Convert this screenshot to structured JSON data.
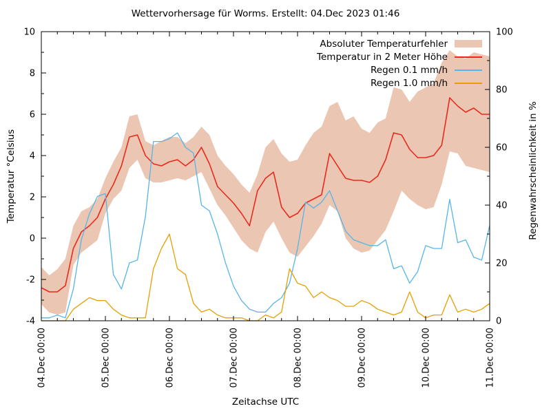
{
  "title": "Wettervorhersage für Worms. Erstellt: 04.Dec 2023 01:46",
  "x_axis": {
    "label": "Zeitachse UTC",
    "tick_labels": [
      "04.Dec 00:00",
      "05.Dec 00:00",
      "06.Dec 00:00",
      "07.Dec 00:00",
      "08.Dec 00:00",
      "09.Dec 00:00",
      "10.Dec 00:00",
      "11.Dec 00:00"
    ]
  },
  "y_left": {
    "label": "Temperatur °Celsius",
    "ticks": [
      10,
      8,
      6,
      4,
      2,
      0,
      -2,
      -4
    ]
  },
  "y_right": {
    "label": "Regenwahrscheinlichkeit in %",
    "ticks": [
      100,
      80,
      60,
      40,
      20,
      0
    ]
  },
  "legend": [
    {
      "label": "Absoluter Temperaturfehler",
      "type": "band",
      "color": "#ebc6b2"
    },
    {
      "label": "Temperatur in 2 Meter Höhe",
      "type": "line",
      "color": "#e8291b"
    },
    {
      "label": "Regen 0.1 mm/h",
      "type": "line",
      "color": "#56b4e9"
    },
    {
      "label": "Regen 1.0 mm/h",
      "type": "line",
      "color": "#e69f00"
    }
  ],
  "chart_data": {
    "type": "line",
    "title": "Wettervorhersage für Worms. Erstellt: 04.Dec 2023 01:46",
    "xlabel": "Zeitachse UTC",
    "ylabel_left": "Temperatur °Celsius",
    "ylabel_right": "Regenwahrscheinlichkeit in %",
    "x_start_hours": 0,
    "x_step_hours": 3,
    "x_end_hours": 168,
    "x_major_tick_hours": 24,
    "x_minor_tick_hours": 6,
    "y_left_range": [
      -4,
      10
    ],
    "y_left_major_step": 2,
    "y_left_minor_step": 1,
    "y_right_range": [
      0,
      100
    ],
    "y_right_major_step": 20,
    "y_right_minor_step": 10,
    "grid": false,
    "legend_position": "top-right-inside",
    "series": [
      {
        "name": "Absoluter Temperaturfehler",
        "type": "band",
        "axis": "left",
        "color": "#ebc6b2",
        "upper": [
          -1.4,
          -1.8,
          -1.5,
          -1.0,
          0.6,
          1.3,
          1.5,
          1.9,
          2.9,
          3.7,
          4.4,
          5.9,
          6.0,
          4.7,
          4.5,
          4.7,
          4.9,
          4.9,
          4.6,
          4.9,
          5.4,
          5.0,
          4.0,
          3.5,
          3.1,
          2.6,
          2.2,
          3.1,
          4.4,
          4.8,
          4.1,
          3.7,
          3.8,
          4.5,
          5.1,
          5.4,
          6.4,
          6.6,
          5.7,
          5.9,
          5.3,
          5.1,
          5.6,
          5.8,
          7.3,
          7.2,
          6.6,
          7.1,
          7.3,
          7.5,
          8.5,
          9.1,
          8.8,
          8.7,
          9.0,
          8.9,
          8.8
        ],
        "lower": [
          -3.2,
          -3.6,
          -3.7,
          -3.6,
          -1.3,
          -0.7,
          -0.4,
          -0.1,
          1.2,
          1.9,
          2.3,
          3.4,
          3.8,
          2.9,
          2.7,
          2.7,
          2.8,
          2.9,
          2.8,
          3.0,
          3.2,
          2.4,
          1.6,
          1.1,
          0.5,
          -0.1,
          -0.5,
          -0.7,
          0.3,
          0.8,
          0.0,
          -0.7,
          -0.9,
          -0.4,
          0.1,
          0.7,
          1.6,
          1.3,
          0.0,
          -0.5,
          -0.7,
          -0.6,
          -0.1,
          0.4,
          1.3,
          2.3,
          1.9,
          1.6,
          1.4,
          1.5,
          2.6,
          4.2,
          4.1,
          3.5,
          3.4,
          3.3,
          3.2
        ]
      },
      {
        "name": "Temperatur in 2 Meter Höhe",
        "type": "line",
        "axis": "left",
        "color": "#e8291b",
        "values": [
          -2.4,
          -2.6,
          -2.6,
          -2.3,
          -0.5,
          0.3,
          0.6,
          1.0,
          1.9,
          2.6,
          3.5,
          4.9,
          5.0,
          4.0,
          3.6,
          3.5,
          3.7,
          3.8,
          3.5,
          3.8,
          4.4,
          3.6,
          2.5,
          2.1,
          1.7,
          1.2,
          0.6,
          2.3,
          2.9,
          3.2,
          1.5,
          1.0,
          1.2,
          1.7,
          1.9,
          2.1,
          4.1,
          3.5,
          2.9,
          2.8,
          2.8,
          2.7,
          3.0,
          3.8,
          5.1,
          5.0,
          4.3,
          3.9,
          3.9,
          4.0,
          4.5,
          6.8,
          6.4,
          6.1,
          6.3,
          6.0,
          6.0
        ]
      },
      {
        "name": "Regen 0.1 mm/h",
        "type": "line",
        "axis": "right",
        "color": "#56b4e9",
        "values": [
          1,
          1,
          2,
          1,
          11,
          28,
          37,
          43,
          44,
          16,
          11,
          20,
          21,
          36,
          62,
          62,
          63,
          65,
          60,
          58,
          40,
          38,
          30,
          20,
          12,
          7,
          4,
          3,
          3,
          6,
          8,
          13,
          25,
          41,
          39,
          41,
          45,
          38,
          31,
          28,
          27,
          26,
          26,
          28,
          18,
          19,
          13,
          17,
          26,
          25,
          25,
          42,
          27,
          28,
          22,
          21,
          33
        ]
      },
      {
        "name": "Regen 1.0 mm/h",
        "type": "line",
        "axis": "right",
        "color": "#e69f00",
        "values": [
          0,
          0,
          0,
          0,
          4,
          6,
          8,
          7,
          7,
          4,
          2,
          1,
          1,
          1,
          18,
          25,
          30,
          18,
          16,
          6,
          3,
          4,
          2,
          1,
          1,
          1,
          0,
          0,
          2,
          1,
          3,
          18,
          13,
          12,
          8,
          10,
          8,
          7,
          5,
          5,
          7,
          6,
          4,
          3,
          2,
          3,
          10,
          3,
          1,
          2,
          2,
          9,
          3,
          4,
          3,
          4,
          6
        ]
      }
    ]
  }
}
